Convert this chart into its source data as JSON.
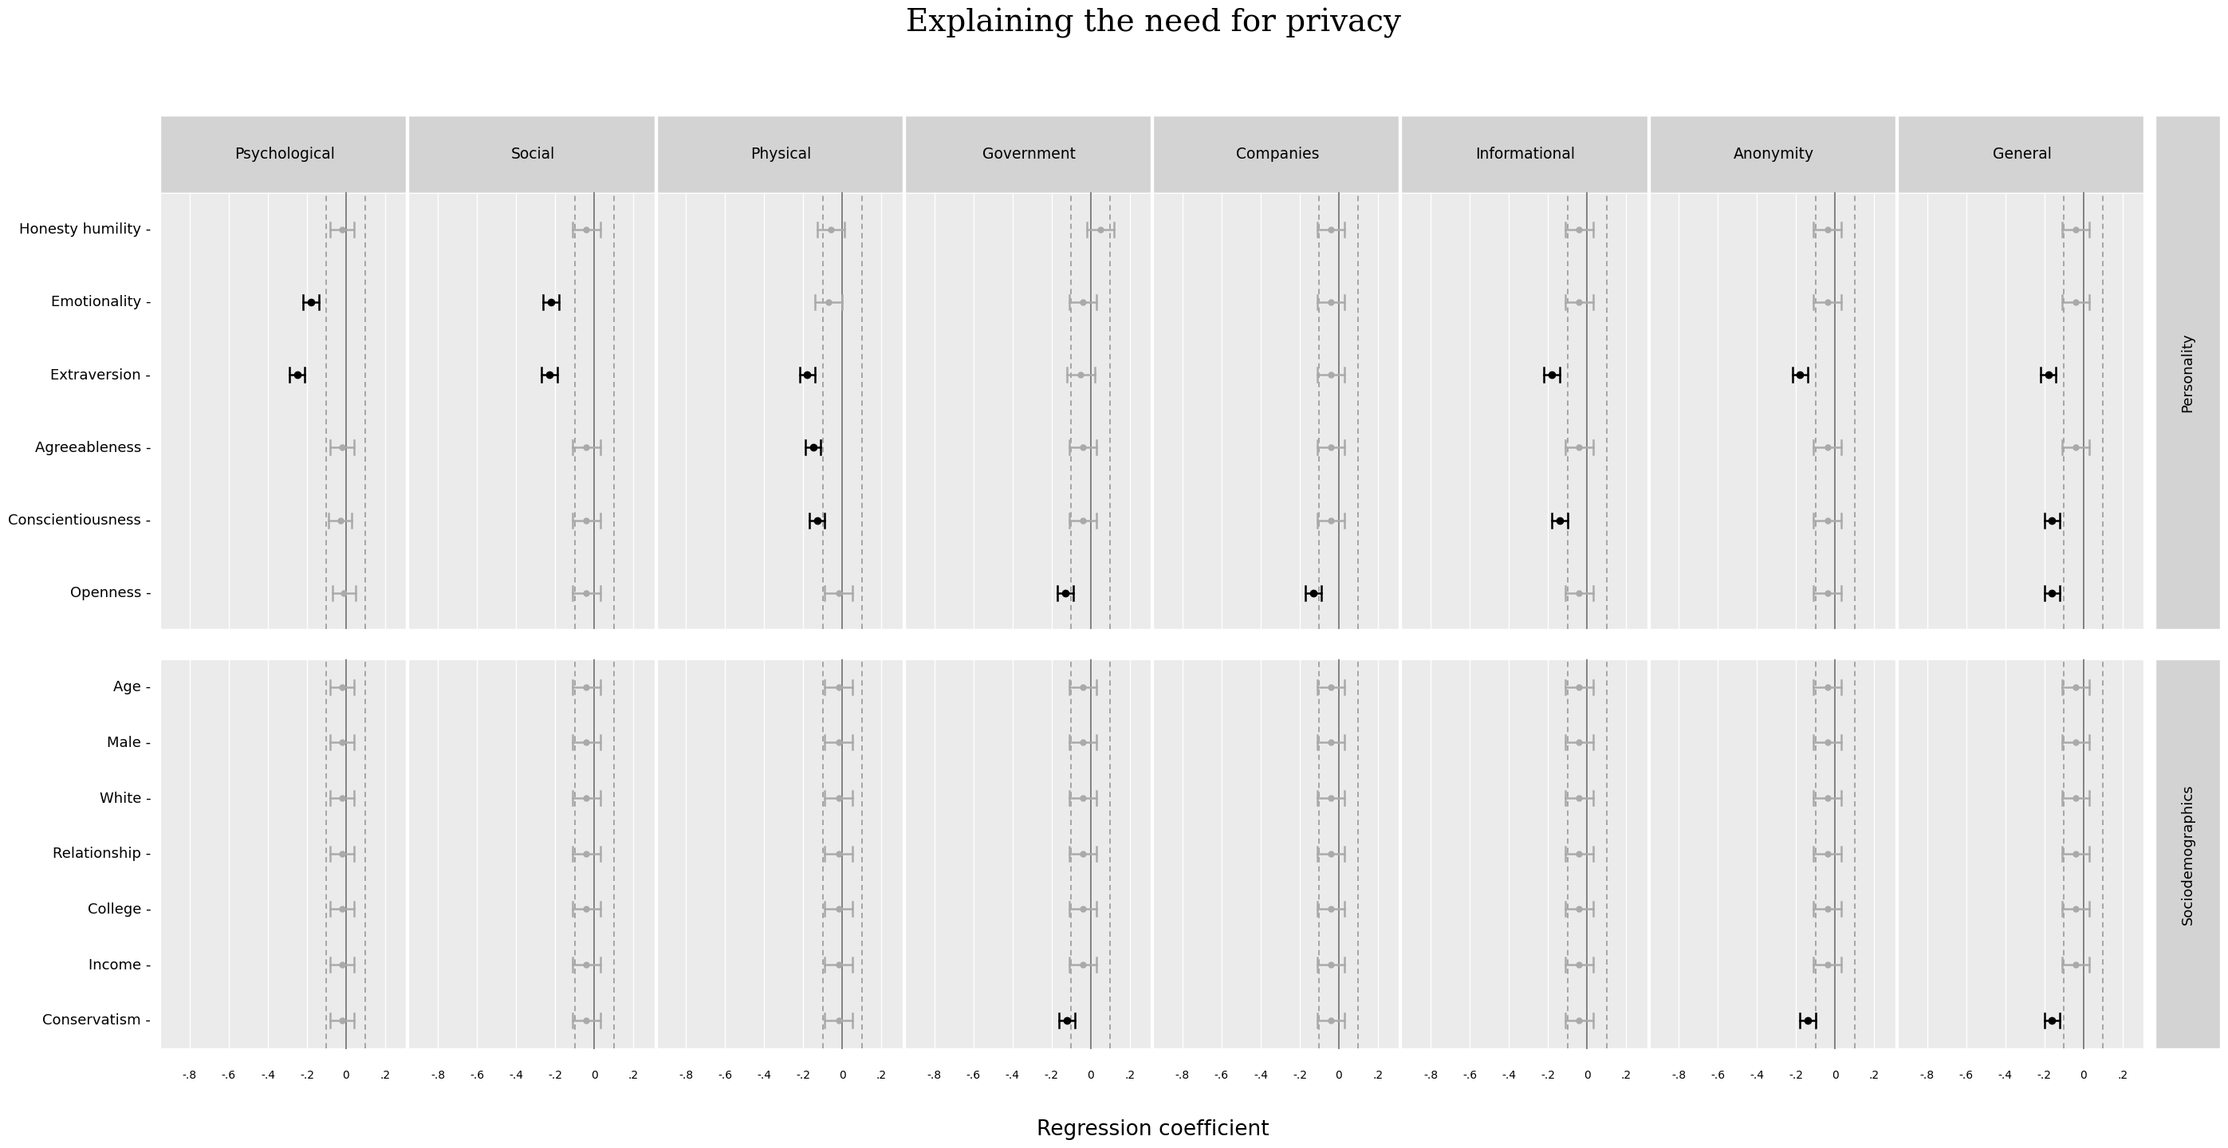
{
  "title": "Explaining the need for privacy",
  "xlabel": "Regression coefficient",
  "x_ticks": [
    -0.8,
    -0.6,
    -0.4,
    -0.2,
    0.0,
    0.2
  ],
  "x_tick_labels": [
    "-.8",
    "-.6",
    "-.4",
    "-.2",
    "0",
    ".2"
  ],
  "xlim": [
    -0.95,
    0.32
  ],
  "columns": [
    "Psychological",
    "Social",
    "Physical",
    "Government",
    "Companies",
    "Informational",
    "Anonymity",
    "General"
  ],
  "personality_rows": [
    "Honesty humility",
    "Emotionality",
    "Extraversion",
    "Agreeableness",
    "Conscientiousness",
    "Openness"
  ],
  "sociodem_rows": [
    "Age",
    "Male",
    "White",
    "Relationship",
    "College",
    "Income",
    "Conservatism"
  ],
  "vline_solid": 0.0,
  "vline_dashed": [
    -0.1,
    0.1
  ],
  "background_panel": "#ebebeb",
  "background_header": "#d3d3d3",
  "black_color": "#000000",
  "gray_color": "#aaaaaa",
  "data": {
    "Psychological": {
      "Honesty humility": {
        "coef": -0.02,
        "ci": 0.06,
        "significant": false
      },
      "Emotionality": {
        "coef": -0.18,
        "ci": 0.04,
        "significant": true
      },
      "Extraversion": {
        "coef": -0.25,
        "ci": 0.04,
        "significant": true
      },
      "Agreeableness": {
        "coef": -0.02,
        "ci": 0.06,
        "significant": false
      },
      "Conscientiousness": {
        "coef": -0.03,
        "ci": 0.06,
        "significant": false
      },
      "Openness": {
        "coef": -0.01,
        "ci": 0.06,
        "significant": false
      },
      "Age": {
        "coef": -0.02,
        "ci": 0.06,
        "significant": false
      },
      "Male": {
        "coef": -0.02,
        "ci": 0.06,
        "significant": false
      },
      "White": {
        "coef": -0.02,
        "ci": 0.06,
        "significant": false
      },
      "Relationship": {
        "coef": -0.02,
        "ci": 0.06,
        "significant": false
      },
      "College": {
        "coef": -0.02,
        "ci": 0.06,
        "significant": false
      },
      "Income": {
        "coef": -0.02,
        "ci": 0.06,
        "significant": false
      },
      "Conservatism": {
        "coef": -0.02,
        "ci": 0.06,
        "significant": false
      }
    },
    "Social": {
      "Honesty humility": {
        "coef": -0.04,
        "ci": 0.07,
        "significant": false
      },
      "Emotionality": {
        "coef": -0.22,
        "ci": 0.04,
        "significant": true
      },
      "Extraversion": {
        "coef": -0.23,
        "ci": 0.04,
        "significant": true
      },
      "Agreeableness": {
        "coef": -0.04,
        "ci": 0.07,
        "significant": false
      },
      "Conscientiousness": {
        "coef": -0.04,
        "ci": 0.07,
        "significant": false
      },
      "Openness": {
        "coef": -0.04,
        "ci": 0.07,
        "significant": false
      },
      "Age": {
        "coef": -0.04,
        "ci": 0.07,
        "significant": false
      },
      "Male": {
        "coef": -0.04,
        "ci": 0.07,
        "significant": false
      },
      "White": {
        "coef": -0.04,
        "ci": 0.07,
        "significant": false
      },
      "Relationship": {
        "coef": -0.04,
        "ci": 0.07,
        "significant": false
      },
      "College": {
        "coef": -0.04,
        "ci": 0.07,
        "significant": false
      },
      "Income": {
        "coef": -0.04,
        "ci": 0.07,
        "significant": false
      },
      "Conservatism": {
        "coef": -0.04,
        "ci": 0.07,
        "significant": false
      }
    },
    "Physical": {
      "Honesty humility": {
        "coef": -0.06,
        "ci": 0.07,
        "significant": false
      },
      "Emotionality": {
        "coef": -0.07,
        "ci": 0.07,
        "significant": false
      },
      "Extraversion": {
        "coef": -0.18,
        "ci": 0.04,
        "significant": true
      },
      "Agreeableness": {
        "coef": -0.15,
        "ci": 0.04,
        "significant": true
      },
      "Conscientiousness": {
        "coef": -0.13,
        "ci": 0.04,
        "significant": true
      },
      "Openness": {
        "coef": -0.02,
        "ci": 0.07,
        "significant": false
      },
      "Age": {
        "coef": -0.02,
        "ci": 0.07,
        "significant": false
      },
      "Male": {
        "coef": -0.02,
        "ci": 0.07,
        "significant": false
      },
      "White": {
        "coef": -0.02,
        "ci": 0.07,
        "significant": false
      },
      "Relationship": {
        "coef": -0.02,
        "ci": 0.07,
        "significant": false
      },
      "College": {
        "coef": -0.02,
        "ci": 0.07,
        "significant": false
      },
      "Income": {
        "coef": -0.02,
        "ci": 0.07,
        "significant": false
      },
      "Conservatism": {
        "coef": -0.02,
        "ci": 0.07,
        "significant": false
      }
    },
    "Government": {
      "Honesty humility": {
        "coef": 0.05,
        "ci": 0.07,
        "significant": false
      },
      "Emotionality": {
        "coef": -0.04,
        "ci": 0.07,
        "significant": false
      },
      "Extraversion": {
        "coef": -0.05,
        "ci": 0.07,
        "significant": false
      },
      "Agreeableness": {
        "coef": -0.04,
        "ci": 0.07,
        "significant": false
      },
      "Conscientiousness": {
        "coef": -0.04,
        "ci": 0.07,
        "significant": false
      },
      "Openness": {
        "coef": -0.13,
        "ci": 0.04,
        "significant": true
      },
      "Age": {
        "coef": -0.04,
        "ci": 0.07,
        "significant": false
      },
      "Male": {
        "coef": -0.04,
        "ci": 0.07,
        "significant": false
      },
      "White": {
        "coef": -0.04,
        "ci": 0.07,
        "significant": false
      },
      "Relationship": {
        "coef": -0.04,
        "ci": 0.07,
        "significant": false
      },
      "College": {
        "coef": -0.04,
        "ci": 0.07,
        "significant": false
      },
      "Income": {
        "coef": -0.04,
        "ci": 0.07,
        "significant": false
      },
      "Conservatism": {
        "coef": -0.12,
        "ci": 0.04,
        "significant": true
      }
    },
    "Companies": {
      "Honesty humility": {
        "coef": -0.04,
        "ci": 0.07,
        "significant": false
      },
      "Emotionality": {
        "coef": -0.04,
        "ci": 0.07,
        "significant": false
      },
      "Extraversion": {
        "coef": -0.04,
        "ci": 0.07,
        "significant": false
      },
      "Agreeableness": {
        "coef": -0.04,
        "ci": 0.07,
        "significant": false
      },
      "Conscientiousness": {
        "coef": -0.04,
        "ci": 0.07,
        "significant": false
      },
      "Openness": {
        "coef": -0.13,
        "ci": 0.04,
        "significant": true
      },
      "Age": {
        "coef": -0.04,
        "ci": 0.07,
        "significant": false
      },
      "Male": {
        "coef": -0.04,
        "ci": 0.07,
        "significant": false
      },
      "White": {
        "coef": -0.04,
        "ci": 0.07,
        "significant": false
      },
      "Relationship": {
        "coef": -0.04,
        "ci": 0.07,
        "significant": false
      },
      "College": {
        "coef": -0.04,
        "ci": 0.07,
        "significant": false
      },
      "Income": {
        "coef": -0.04,
        "ci": 0.07,
        "significant": false
      },
      "Conservatism": {
        "coef": -0.04,
        "ci": 0.07,
        "significant": false
      }
    },
    "Informational": {
      "Honesty humility": {
        "coef": -0.04,
        "ci": 0.07,
        "significant": false
      },
      "Emotionality": {
        "coef": -0.04,
        "ci": 0.07,
        "significant": false
      },
      "Extraversion": {
        "coef": -0.18,
        "ci": 0.04,
        "significant": true
      },
      "Agreeableness": {
        "coef": -0.04,
        "ci": 0.07,
        "significant": false
      },
      "Conscientiousness": {
        "coef": -0.14,
        "ci": 0.04,
        "significant": true
      },
      "Openness": {
        "coef": -0.04,
        "ci": 0.07,
        "significant": false
      },
      "Age": {
        "coef": -0.04,
        "ci": 0.07,
        "significant": false
      },
      "Male": {
        "coef": -0.04,
        "ci": 0.07,
        "significant": false
      },
      "White": {
        "coef": -0.04,
        "ci": 0.07,
        "significant": false
      },
      "Relationship": {
        "coef": -0.04,
        "ci": 0.07,
        "significant": false
      },
      "College": {
        "coef": -0.04,
        "ci": 0.07,
        "significant": false
      },
      "Income": {
        "coef": -0.04,
        "ci": 0.07,
        "significant": false
      },
      "Conservatism": {
        "coef": -0.04,
        "ci": 0.07,
        "significant": false
      }
    },
    "Anonymity": {
      "Honesty humility": {
        "coef": -0.04,
        "ci": 0.07,
        "significant": false
      },
      "Emotionality": {
        "coef": -0.04,
        "ci": 0.07,
        "significant": false
      },
      "Extraversion": {
        "coef": -0.18,
        "ci": 0.04,
        "significant": true
      },
      "Agreeableness": {
        "coef": -0.04,
        "ci": 0.07,
        "significant": false
      },
      "Conscientiousness": {
        "coef": -0.04,
        "ci": 0.07,
        "significant": false
      },
      "Openness": {
        "coef": -0.04,
        "ci": 0.07,
        "significant": false
      },
      "Age": {
        "coef": -0.04,
        "ci": 0.07,
        "significant": false
      },
      "Male": {
        "coef": -0.04,
        "ci": 0.07,
        "significant": false
      },
      "White": {
        "coef": -0.04,
        "ci": 0.07,
        "significant": false
      },
      "Relationship": {
        "coef": -0.04,
        "ci": 0.07,
        "significant": false
      },
      "College": {
        "coef": -0.04,
        "ci": 0.07,
        "significant": false
      },
      "Income": {
        "coef": -0.04,
        "ci": 0.07,
        "significant": false
      },
      "Conservatism": {
        "coef": -0.14,
        "ci": 0.04,
        "significant": true
      }
    },
    "General": {
      "Honesty humility": {
        "coef": -0.04,
        "ci": 0.07,
        "significant": false
      },
      "Emotionality": {
        "coef": -0.04,
        "ci": 0.07,
        "significant": false
      },
      "Extraversion": {
        "coef": -0.18,
        "ci": 0.04,
        "significant": true
      },
      "Agreeableness": {
        "coef": -0.04,
        "ci": 0.07,
        "significant": false
      },
      "Conscientiousness": {
        "coef": -0.16,
        "ci": 0.04,
        "significant": true
      },
      "Openness": {
        "coef": -0.16,
        "ci": 0.04,
        "significant": true
      },
      "Age": {
        "coef": -0.04,
        "ci": 0.07,
        "significant": false
      },
      "Male": {
        "coef": -0.04,
        "ci": 0.07,
        "significant": false
      },
      "White": {
        "coef": -0.04,
        "ci": 0.07,
        "significant": false
      },
      "Relationship": {
        "coef": -0.04,
        "ci": 0.07,
        "significant": false
      },
      "College": {
        "coef": -0.04,
        "ci": 0.07,
        "significant": false
      },
      "Income": {
        "coef": -0.04,
        "ci": 0.07,
        "significant": false
      },
      "Conservatism": {
        "coef": -0.16,
        "ci": 0.04,
        "significant": true
      }
    }
  }
}
